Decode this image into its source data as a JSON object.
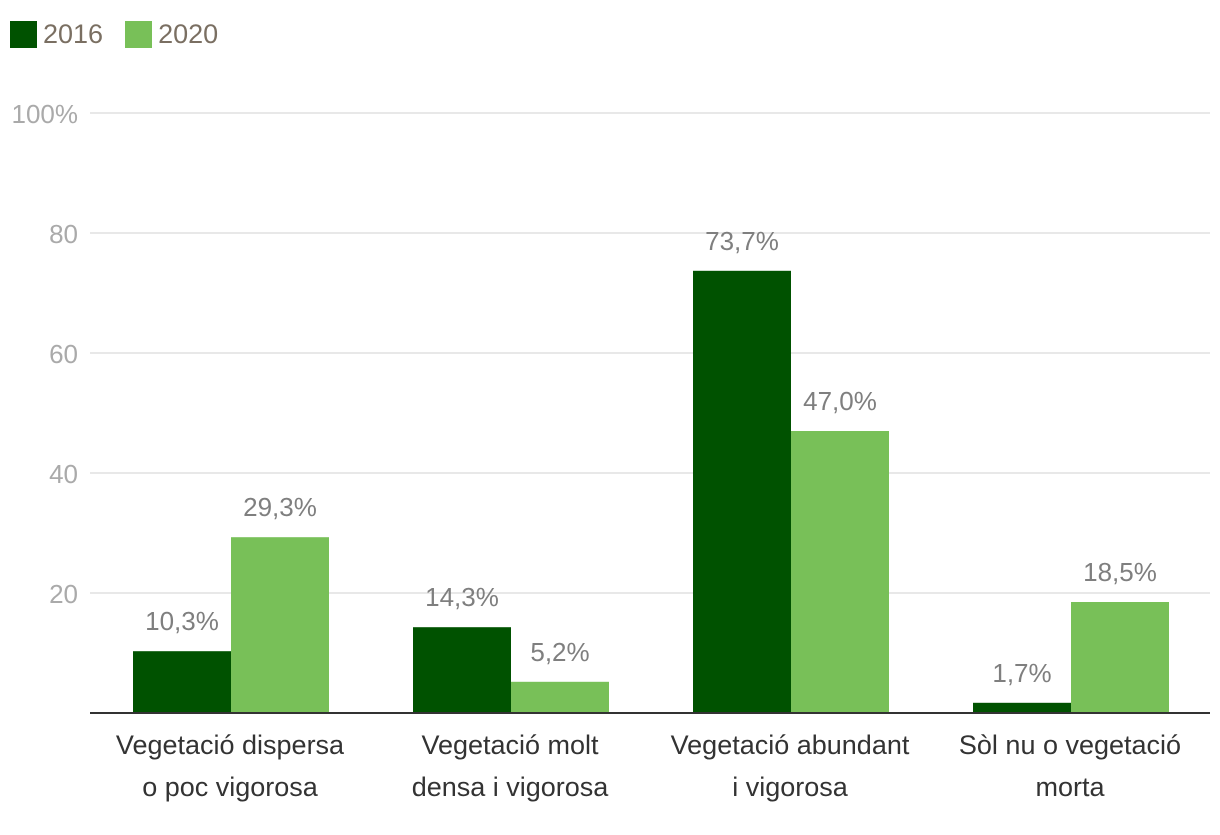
{
  "chart_data": {
    "type": "bar",
    "title": "",
    "xlabel": "",
    "ylabel": "",
    "ylim": [
      0,
      100
    ],
    "yticks": [
      {
        "value": 20,
        "label": "20"
      },
      {
        "value": 40,
        "label": "40"
      },
      {
        "value": 60,
        "label": "60"
      },
      {
        "value": 80,
        "label": "80"
      },
      {
        "value": 100,
        "label": "100%"
      }
    ],
    "grid": true,
    "legend_position": "top-left",
    "categories": [
      [
        "Vegetació dispersa",
        "o poc vigorosa"
      ],
      [
        "Vegetació molt",
        "densa i vigorosa"
      ],
      [
        "Vegetació abundant",
        "i vigorosa"
      ],
      [
        "Sòl nu o vegetació",
        "morta"
      ]
    ],
    "series": [
      {
        "name": "2016",
        "color": "#005200",
        "values": [
          10.3,
          14.3,
          73.7,
          1.7
        ],
        "labels": [
          "10,3%",
          "14,3%",
          "73,7%",
          "1,7%"
        ]
      },
      {
        "name": "2020",
        "color": "#78c058",
        "values": [
          29.3,
          5.2,
          47.0,
          18.5
        ],
        "labels": [
          "29,3%",
          "5,2%",
          "47,0%",
          "18,5%"
        ]
      }
    ]
  },
  "colors": {
    "grid": "#e0e0e0",
    "axis": "#333333",
    "tick_label": "#aaaaaa",
    "data_label": "#7f7f7f",
    "category_label": "#333333",
    "legend_text": "#7a6f62"
  }
}
